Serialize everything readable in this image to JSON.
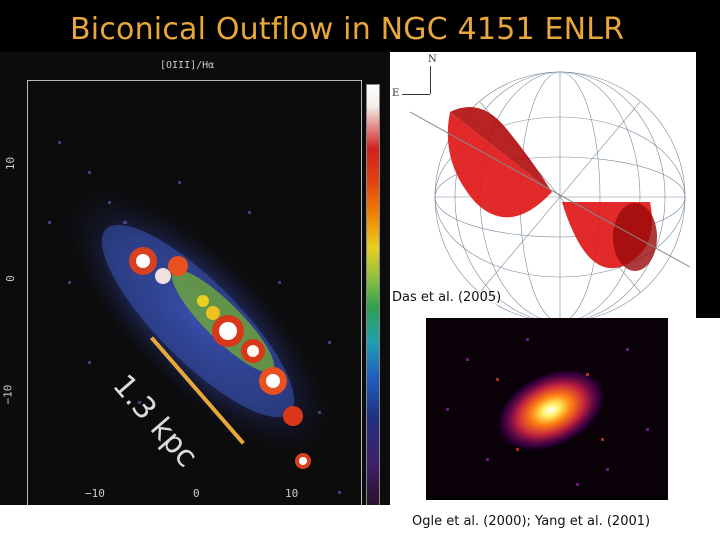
{
  "title": "Biconical Outflow in NGC 4151 ENLR",
  "left_panel": {
    "label": "[OIII]/Hα",
    "x_ticks": [
      "−10",
      "0",
      "10"
    ],
    "y_ticks": [
      "10",
      "0",
      "−10"
    ],
    "scale_label": "1.3 kpc"
  },
  "model_panel": {
    "north_label": "N",
    "east_label": "E",
    "credit": "Das et al. (2005)"
  },
  "xray_panel": {
    "credit": "Ogle et al. (2000);  Yang et al. (2001)"
  },
  "colors": {
    "title": "#e8a73a",
    "scale_bar": "#e8a73a",
    "cone": "#e01818"
  }
}
